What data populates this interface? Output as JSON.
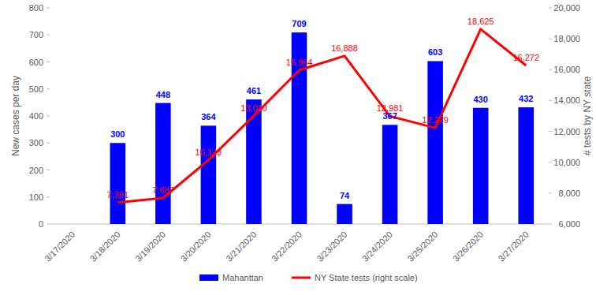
{
  "chart_data": {
    "type": "bar",
    "categories": [
      "3/17/2020",
      "3/18/2020",
      "3/19/2020",
      "3/20/2020",
      "3/21/2020",
      "3/22/2020",
      "3/23/2020",
      "3/24/2020",
      "3/25/2020",
      "3/26/2020",
      "3/27/2020"
    ],
    "series": [
      {
        "name": "Mahanttan",
        "type": "bar",
        "color": "#0000ff",
        "values": [
          null,
          300,
          448,
          364,
          461,
          709,
          74,
          367,
          603,
          430,
          432
        ]
      },
      {
        "name": "NY State tests (right scale)",
        "type": "line",
        "axis": "y2",
        "color": "#ff0000",
        "values": [
          null,
          7391,
          7687,
          10143,
          13010,
          15964,
          16888,
          12981,
          12229,
          18625,
          16272
        ],
        "value_labels": [
          null,
          "7,391",
          "7,687",
          "10,143",
          "13,010",
          "15,964",
          "16,888",
          "12,981",
          "12,229",
          "18,625",
          "16,272"
        ]
      }
    ],
    "y_label": "New cases per day",
    "y2_label": "# tests by NY state",
    "ylim": [
      0,
      800
    ],
    "yticks": [
      0,
      100,
      200,
      300,
      400,
      500,
      600,
      700,
      800
    ],
    "y2lim": [
      6000,
      20000
    ],
    "y2ticks": [
      {
        "value": 6000,
        "label": "6,000"
      },
      {
        "value": 8000,
        "label": "8,000"
      },
      {
        "value": 10000,
        "label": "10,000"
      },
      {
        "value": 12000,
        "label": "12,000"
      },
      {
        "value": 14000,
        "label": "14,000"
      },
      {
        "value": 16000,
        "label": "16,000"
      },
      {
        "value": 18000,
        "label": "18,000"
      },
      {
        "value": 20000,
        "label": "20,000"
      }
    ],
    "grid": false,
    "legend": "bottom",
    "data_labels": true
  }
}
